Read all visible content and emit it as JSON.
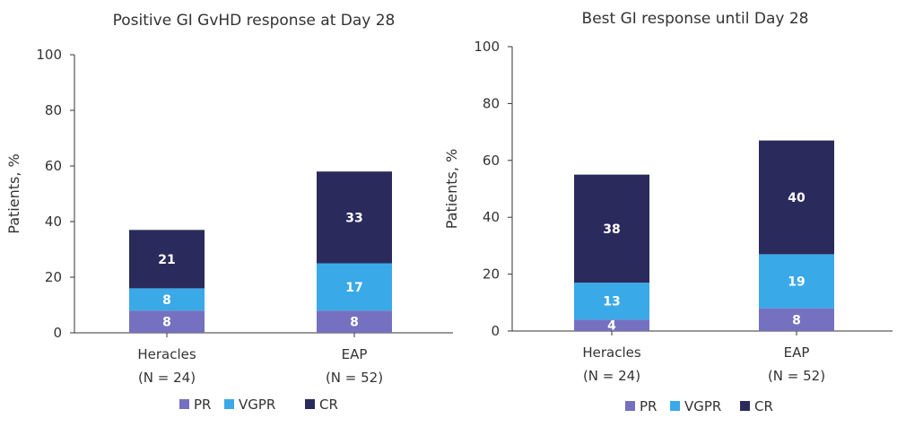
{
  "colors": {
    "PR": "#7570bf",
    "VGPR": "#3aa9e8",
    "CR": "#2b2a5c"
  },
  "chart_data": [
    {
      "type": "bar",
      "stacked": true,
      "title": "Positive GI GvHD response at Day 28",
      "ylabel": "Patients, %",
      "ylim": [
        0,
        100
      ],
      "yticks": [
        0,
        20,
        40,
        60,
        80,
        100
      ],
      "categories": [
        "Heracles",
        "EAP"
      ],
      "category_sublabels": [
        "(N = 24)",
        "(N = 52)"
      ],
      "series": [
        {
          "name": "PR",
          "values": [
            8,
            8
          ]
        },
        {
          "name": "VGPR",
          "values": [
            8,
            17
          ]
        },
        {
          "name": "CR",
          "values": [
            21,
            33
          ]
        }
      ],
      "legend": "bottom",
      "grid": false
    },
    {
      "type": "bar",
      "stacked": true,
      "title": "Best GI response until Day 28",
      "ylabel": "Patients, %",
      "ylim": [
        0,
        100
      ],
      "yticks": [
        0,
        20,
        40,
        60,
        80,
        100
      ],
      "categories": [
        "Heracles",
        "EAP"
      ],
      "category_sublabels": [
        "(N = 24)",
        "(N = 52)"
      ],
      "series": [
        {
          "name": "PR",
          "values": [
            4,
            8
          ]
        },
        {
          "name": "VGPR",
          "values": [
            13,
            19
          ]
        },
        {
          "name": "CR",
          "values": [
            38,
            40
          ]
        }
      ],
      "legend": "bottom",
      "grid": false
    }
  ]
}
